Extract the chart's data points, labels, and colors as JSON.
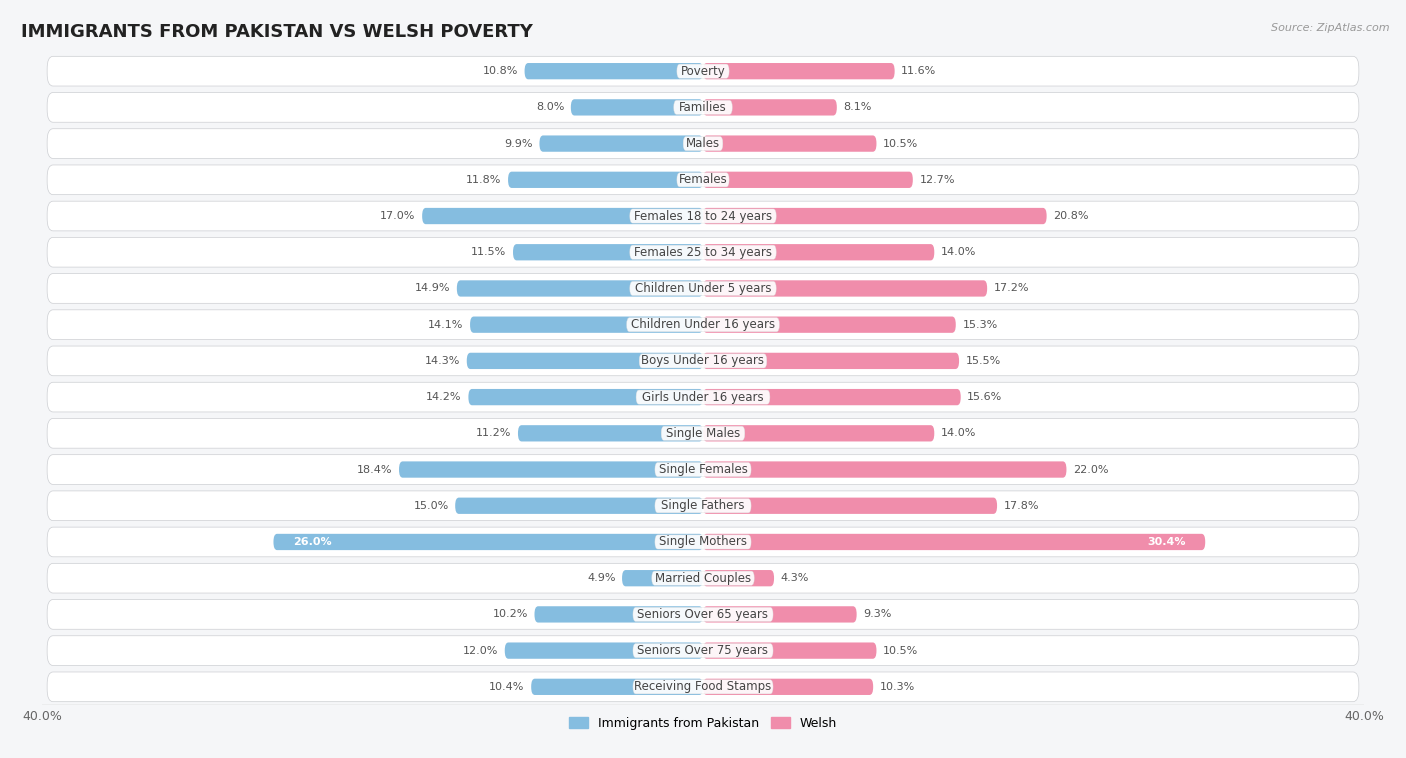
{
  "title": "IMMIGRANTS FROM PAKISTAN VS WELSH POVERTY",
  "source": "Source: ZipAtlas.com",
  "categories": [
    "Poverty",
    "Families",
    "Males",
    "Females",
    "Females 18 to 24 years",
    "Females 25 to 34 years",
    "Children Under 5 years",
    "Children Under 16 years",
    "Boys Under 16 years",
    "Girls Under 16 years",
    "Single Males",
    "Single Females",
    "Single Fathers",
    "Single Mothers",
    "Married Couples",
    "Seniors Over 65 years",
    "Seniors Over 75 years",
    "Receiving Food Stamps"
  ],
  "left_values": [
    10.8,
    8.0,
    9.9,
    11.8,
    17.0,
    11.5,
    14.9,
    14.1,
    14.3,
    14.2,
    11.2,
    18.4,
    15.0,
    26.0,
    4.9,
    10.2,
    12.0,
    10.4
  ],
  "right_values": [
    11.6,
    8.1,
    10.5,
    12.7,
    20.8,
    14.0,
    17.2,
    15.3,
    15.5,
    15.6,
    14.0,
    22.0,
    17.8,
    30.4,
    4.3,
    9.3,
    10.5,
    10.3
  ],
  "left_color": "#85bde0",
  "right_color": "#f08dab",
  "left_label": "Immigrants from Pakistan",
  "right_label": "Welsh",
  "xlim": 40.0,
  "row_bg_color": "#e8eaed",
  "row_inner_color": "#f5f6f8",
  "single_mothers_bg": "#c8d8e8",
  "title_fontsize": 13,
  "label_fontsize": 8.5,
  "value_fontsize": 8.0,
  "axis_label_fontsize": 9
}
